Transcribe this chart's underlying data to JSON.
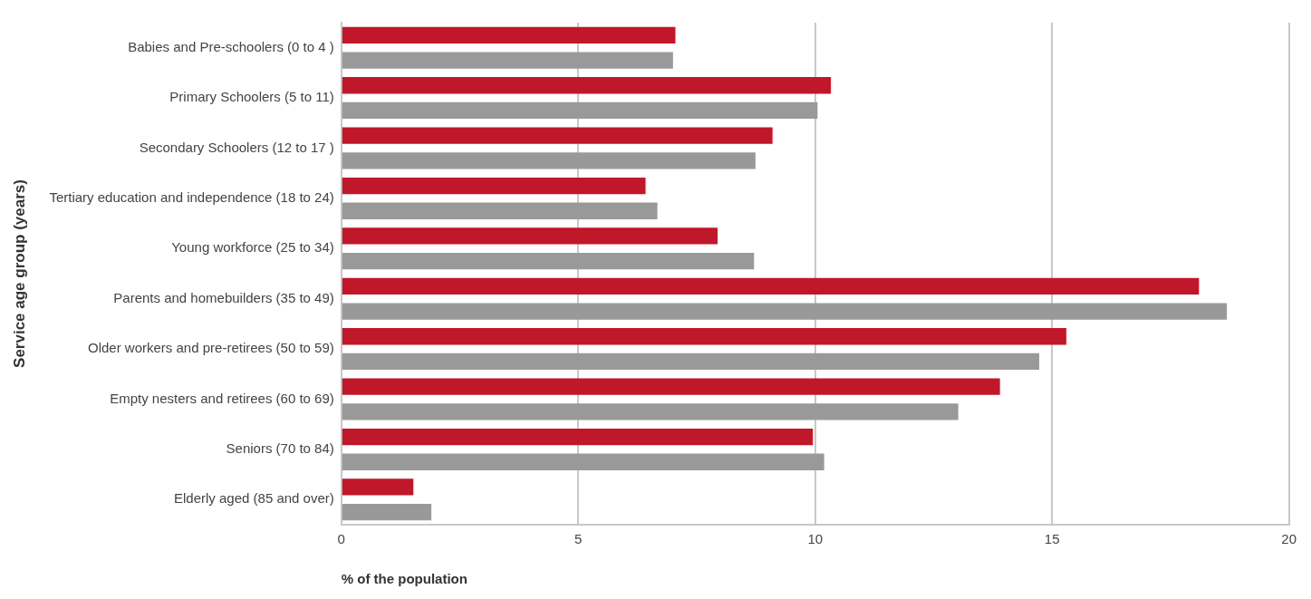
{
  "chart_data": {
    "type": "bar",
    "orientation": "horizontal",
    "xlabel": "% of the population",
    "ylabel": "Service age group (years)",
    "categories": [
      "Babies and Pre-schoolers (0 to 4 )",
      "Primary Schoolers (5 to 11)",
      "Secondary Schoolers (12 to 17 )",
      "Tertiary education and independence (18 to 24)",
      "Young workforce (25 to 34)",
      "Parents and homebuilders (35 to 49)",
      "Older workers and pre-retirees (50 to 59)",
      "Empty nesters and retirees (60 to 69)",
      "Seniors (70 to 84)",
      "Elderly aged (85 and over)"
    ],
    "series": [
      {
        "color": "#c0182a",
        "values": [
          7.05,
          10.33,
          9.1,
          6.42,
          7.94,
          18.1,
          15.3,
          13.9,
          9.95,
          1.52
        ]
      },
      {
        "color": "#999999",
        "values": [
          7.0,
          10.05,
          8.74,
          6.67,
          8.71,
          18.69,
          14.73,
          13.02,
          10.19,
          1.9
        ]
      }
    ],
    "xlim": [
      0,
      20
    ],
    "xticks": [
      0,
      5,
      10,
      15,
      20
    ],
    "grid": "x",
    "legend": false
  }
}
